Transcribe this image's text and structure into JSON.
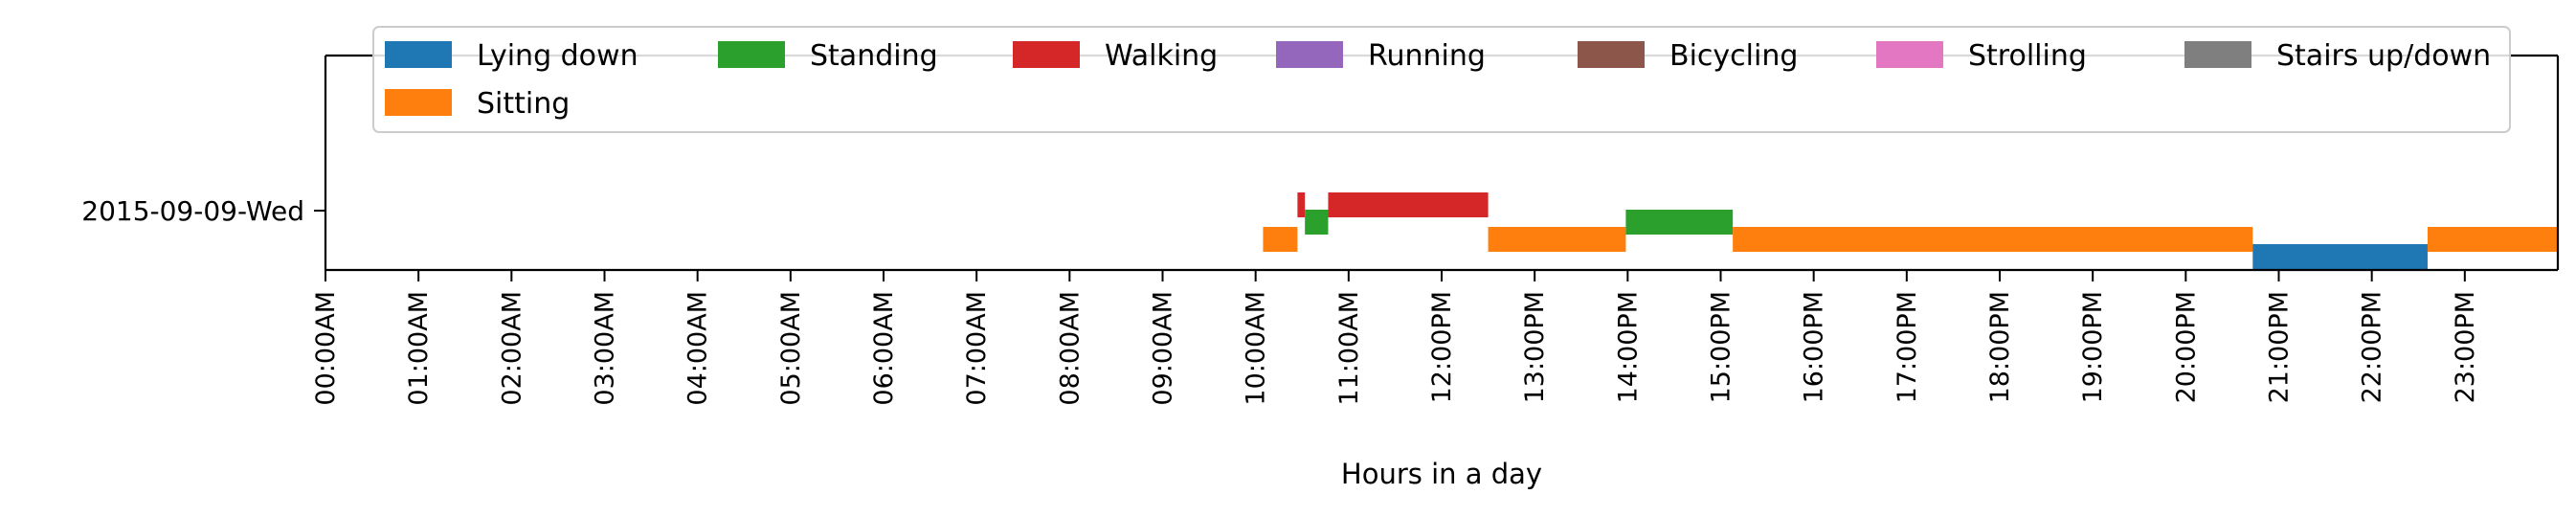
{
  "chart_data": {
    "type": "bar",
    "orientation": "horizontal",
    "title": "",
    "xlabel": "Hours in a day",
    "ylabel": "",
    "row_label": "2015-09-09-Wed",
    "xlim": [
      0,
      24
    ],
    "x_tick_labels": [
      "00:00AM",
      "01:00AM",
      "02:00AM",
      "03:00AM",
      "04:00AM",
      "05:00AM",
      "06:00AM",
      "07:00AM",
      "08:00AM",
      "09:00AM",
      "10:00AM",
      "11:00AM",
      "12:00PM",
      "13:00PM",
      "14:00PM",
      "15:00PM",
      "16:00PM",
      "17:00PM",
      "18:00PM",
      "19:00PM",
      "20:00PM",
      "21:00PM",
      "22:00PM",
      "23:00PM"
    ],
    "grid": false,
    "legend_position": "top",
    "legend_columns": 7,
    "activities": [
      {
        "name": "Lying down",
        "color": "#1f77b4"
      },
      {
        "name": "Sitting",
        "color": "#ff7f0e"
      },
      {
        "name": "Standing",
        "color": "#2ca02c"
      },
      {
        "name": "Walking",
        "color": "#d62728"
      },
      {
        "name": "Running",
        "color": "#9467bd"
      },
      {
        "name": "Bicycling",
        "color": "#8c564b"
      },
      {
        "name": "Strolling",
        "color": "#e377c2"
      },
      {
        "name": "Stairs up/down",
        "color": "#7f7f7f"
      }
    ],
    "legend_order": [
      "Lying down",
      "Standing",
      "Walking",
      "Running",
      "Bicycling",
      "Strolling",
      "Stairs up/down",
      "Sitting"
    ],
    "segments": [
      {
        "activity": "Sitting",
        "start": 10.08,
        "end": 10.45
      },
      {
        "activity": "Walking",
        "start": 10.45,
        "end": 10.53
      },
      {
        "activity": "Standing",
        "start": 10.53,
        "end": 10.78
      },
      {
        "activity": "Walking",
        "start": 10.78,
        "end": 12.5
      },
      {
        "activity": "Sitting",
        "start": 12.5,
        "end": 13.98
      },
      {
        "activity": "Standing",
        "start": 13.98,
        "end": 15.13
      },
      {
        "activity": "Sitting",
        "start": 15.13,
        "end": 20.72
      },
      {
        "activity": "Lying down",
        "start": 20.72,
        "end": 22.6
      },
      {
        "activity": "Sitting",
        "start": 22.6,
        "end": 24.0
      }
    ]
  }
}
